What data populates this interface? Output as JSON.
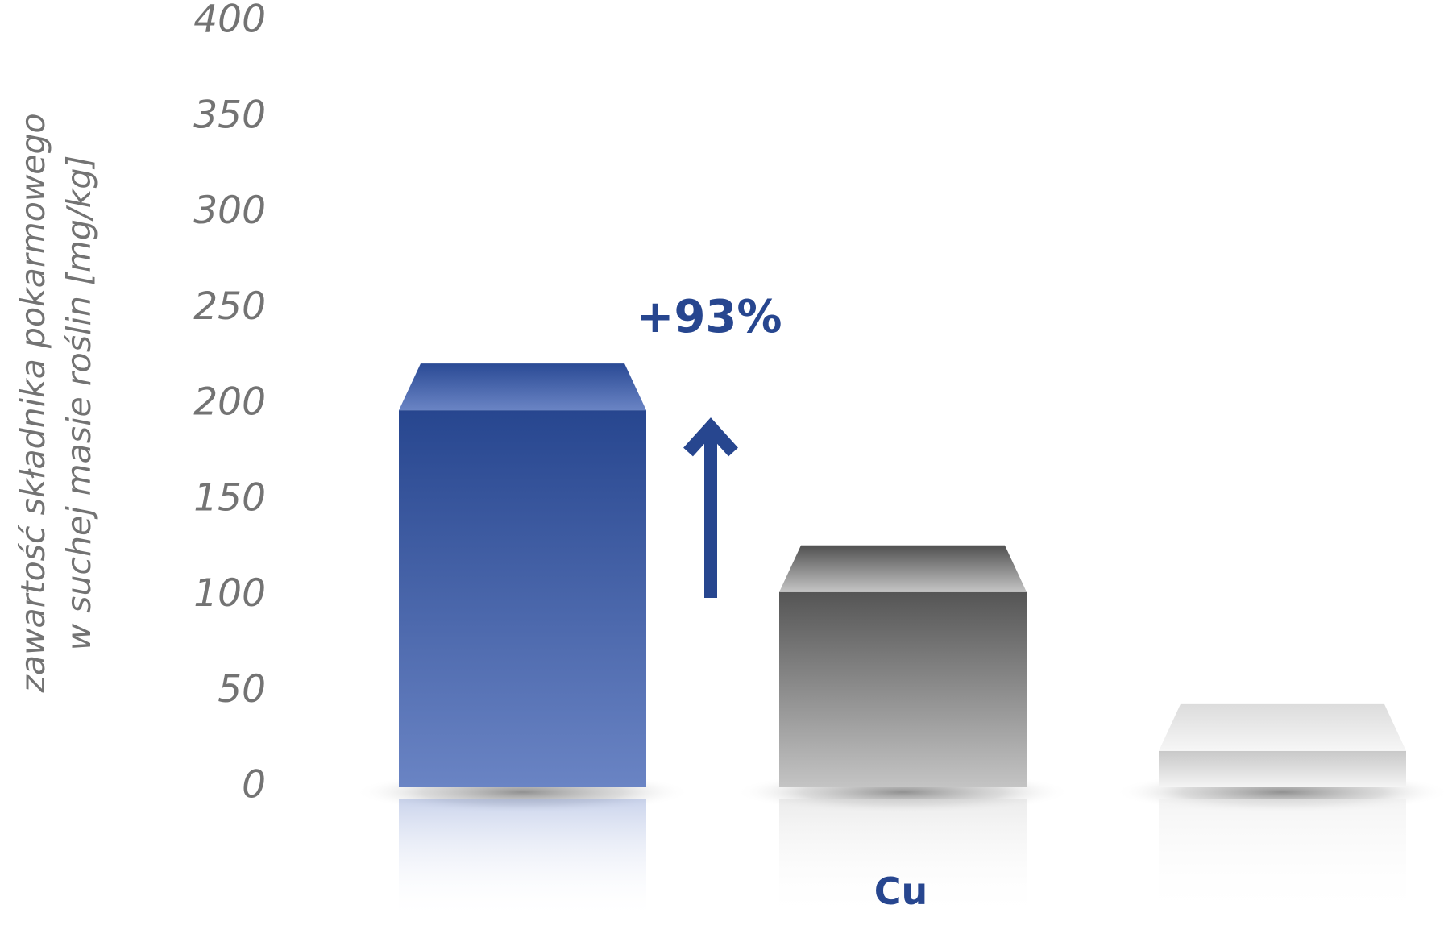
{
  "chart_data": {
    "type": "bar",
    "categories": [
      "Cu"
    ],
    "series": [
      {
        "values": [
          197
        ]
      },
      {
        "values": [
          102
        ]
      },
      {
        "values": [
          19
        ]
      }
    ],
    "ylabel_lines": [
      "zawartość składnika pokarmowego",
      "w suchej masie roślin [mg/kg]"
    ],
    "y_ticks": [
      "0",
      "50",
      "100",
      "150",
      "200",
      "250",
      "300",
      "350",
      "400"
    ],
    "ylim": [
      0,
      400
    ],
    "annotation": {
      "text": "+93%",
      "direction": "up"
    },
    "legend": "none",
    "grid": false,
    "colors": {
      "series_1": "#27468f",
      "series_1_light": "#6a84c4",
      "series_2": "#555555",
      "series_2_light": "#c4c4c4",
      "series_3": "#c8c8c8",
      "series_3_light": "#f4f4f4",
      "annotation": "#27468f",
      "category_label": "#27468f",
      "tick_text": "#737373"
    }
  }
}
